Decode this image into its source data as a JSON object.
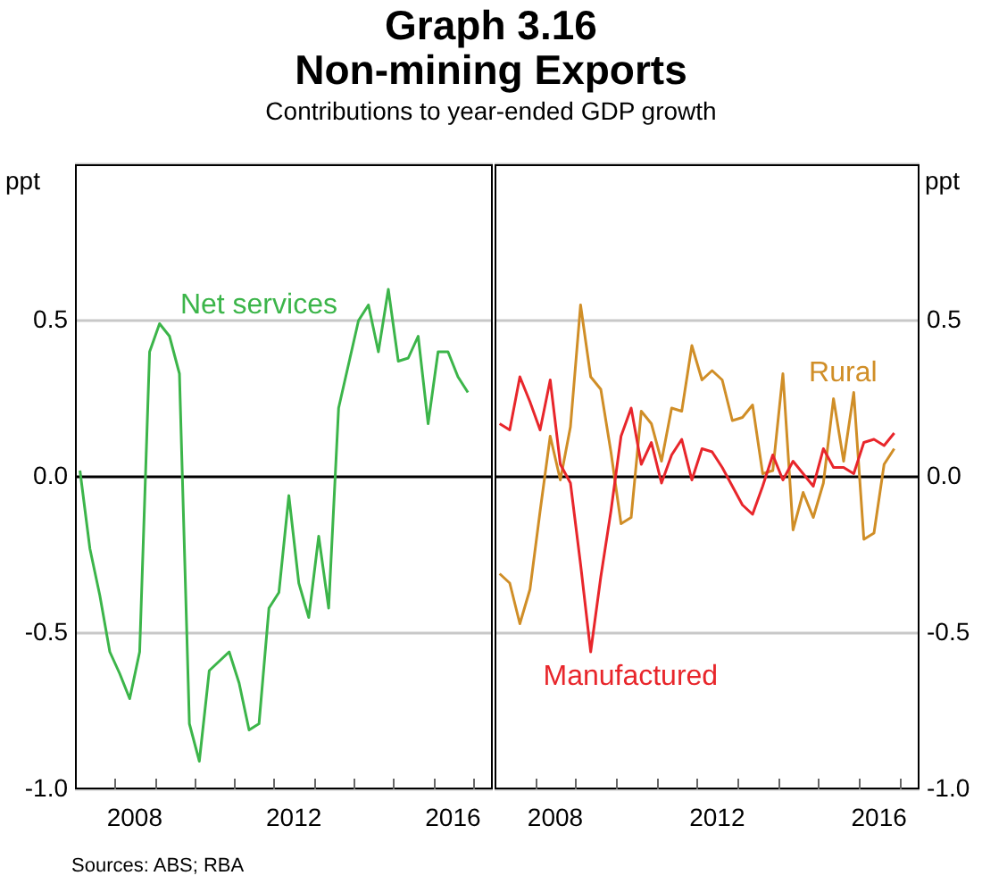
{
  "chart_data": [
    {
      "type": "line",
      "title": "Graph 3.16\nNon-mining Exports",
      "subtitle": "Contributions to year-ended GDP growth",
      "ylabel": "ppt",
      "annotations": [
        "Sources: ABS; RBA"
      ],
      "x": [
        2007.125,
        2007.375,
        2007.625,
        2007.875,
        2008.125,
        2008.375,
        2008.625,
        2008.875,
        2009.125,
        2009.375,
        2009.625,
        2009.875,
        2010.125,
        2010.375,
        2010.625,
        2010.875,
        2011.125,
        2011.375,
        2011.625,
        2011.875,
        2012.125,
        2012.375,
        2012.625,
        2012.875,
        2013.125,
        2013.375,
        2013.625,
        2013.875,
        2014.125,
        2014.375,
        2014.625,
        2014.875,
        2015.125,
        2015.375,
        2015.625,
        2015.875,
        2016.125,
        2016.375,
        2016.625,
        2016.875
      ],
      "series": [
        {
          "name": "Net services",
          "color": "#3cb54a",
          "values": [
            0.02,
            -0.23,
            -0.38,
            -0.56,
            -0.63,
            -0.71,
            -0.56,
            0.4,
            0.49,
            0.45,
            0.33,
            -0.79,
            -0.91,
            -0.62,
            -0.59,
            -0.56,
            -0.66,
            -0.81,
            -0.79,
            -0.42,
            -0.37,
            -0.06,
            -0.34,
            -0.45,
            -0.19,
            -0.42,
            0.22,
            0.36,
            0.5,
            0.55,
            0.4,
            0.6,
            0.37,
            0.38,
            0.45,
            0.17,
            0.4,
            0.4,
            0.32,
            0.27
          ]
        }
      ],
      "xlim": [
        2007,
        2017.5
      ],
      "xticks": [
        {
          "value": 2008,
          "label": null
        },
        {
          "value": 2008.5,
          "label": "2008"
        },
        {
          "value": 2009,
          "label": null
        },
        {
          "value": 2010,
          "label": null
        },
        {
          "value": 2011,
          "label": null
        },
        {
          "value": 2012,
          "label": null
        },
        {
          "value": 2012.5,
          "label": "2012"
        },
        {
          "value": 2013,
          "label": null
        },
        {
          "value": 2014,
          "label": null
        },
        {
          "value": 2015,
          "label": null
        },
        {
          "value": 2016,
          "label": null
        },
        {
          "value": 2016.5,
          "label": "2016"
        },
        {
          "value": 2017,
          "label": null
        }
      ],
      "ylim": [
        -1,
        1
      ],
      "yticks": [
        {
          "value": -1,
          "label": "-1.0"
        },
        {
          "value": -0.5,
          "label": "-0.5"
        },
        {
          "value": 0,
          "label": "0.0"
        },
        {
          "value": 0.5,
          "label": "0.5"
        },
        {
          "value": 1,
          "label": null
        }
      ],
      "grid": "y",
      "legend": false,
      "marker": "none",
      "line_style": "solid"
    },
    {
      "type": "line",
      "ylabel": "ppt",
      "x": [
        2007.125,
        2007.375,
        2007.625,
        2007.875,
        2008.125,
        2008.375,
        2008.625,
        2008.875,
        2009.125,
        2009.375,
        2009.625,
        2009.875,
        2010.125,
        2010.375,
        2010.625,
        2010.875,
        2011.125,
        2011.375,
        2011.625,
        2011.875,
        2012.125,
        2012.375,
        2012.625,
        2012.875,
        2013.125,
        2013.375,
        2013.625,
        2013.875,
        2014.125,
        2014.375,
        2014.625,
        2014.875,
        2015.125,
        2015.375,
        2015.625,
        2015.875,
        2016.125,
        2016.375,
        2016.625,
        2016.875
      ],
      "series": [
        {
          "name": "Manufactured",
          "color": "#e8262b",
          "values": [
            0.17,
            0.15,
            0.32,
            0.24,
            0.15,
            0.31,
            0.04,
            -0.02,
            -0.28,
            -0.56,
            -0.32,
            -0.11,
            0.13,
            0.22,
            0.04,
            0.11,
            -0.02,
            0.07,
            0.12,
            -0.01,
            0.09,
            0.08,
            0.03,
            -0.03,
            -0.09,
            -0.12,
            -0.03,
            0.07,
            -0.01,
            0.05,
            0.01,
            -0.03,
            0.09,
            0.03,
            0.03,
            0.01,
            0.11,
            0.12,
            0.1,
            0.14
          ]
        },
        {
          "name": "Rural",
          "color": "#d08e27",
          "values": [
            -0.31,
            -0.34,
            -0.47,
            -0.36,
            -0.11,
            0.13,
            -0.01,
            0.16,
            0.55,
            0.32,
            0.28,
            0.08,
            -0.15,
            -0.13,
            0.21,
            0.17,
            0.05,
            0.22,
            0.21,
            0.42,
            0.31,
            0.34,
            0.31,
            0.18,
            0.19,
            0.23,
            0.01,
            0.02,
            0.33,
            -0.17,
            -0.05,
            -0.13,
            -0.02,
            0.25,
            0.05,
            0.27,
            -0.2,
            -0.18,
            0.04,
            0.09
          ]
        }
      ],
      "xlim": [
        2007,
        2017.5
      ],
      "xticks": [
        {
          "value": 2008,
          "label": null
        },
        {
          "value": 2008.5,
          "label": "2008"
        },
        {
          "value": 2009,
          "label": null
        },
        {
          "value": 2010,
          "label": null
        },
        {
          "value": 2011,
          "label": null
        },
        {
          "value": 2012,
          "label": null
        },
        {
          "value": 2012.5,
          "label": "2012"
        },
        {
          "value": 2013,
          "label": null
        },
        {
          "value": 2014,
          "label": null
        },
        {
          "value": 2015,
          "label": null
        },
        {
          "value": 2016,
          "label": null
        },
        {
          "value": 2016.5,
          "label": "2016"
        },
        {
          "value": 2017,
          "label": null
        }
      ],
      "ylim": [
        -1,
        1
      ],
      "yticks": [
        {
          "value": -1,
          "label": "-1.0"
        },
        {
          "value": -0.5,
          "label": "-0.5"
        },
        {
          "value": 0,
          "label": "0.0"
        },
        {
          "value": 0.5,
          "label": "0.5"
        },
        {
          "value": 1,
          "label": null
        }
      ],
      "grid": "y",
      "legend": false,
      "marker": "none",
      "line_style": "solid"
    }
  ]
}
